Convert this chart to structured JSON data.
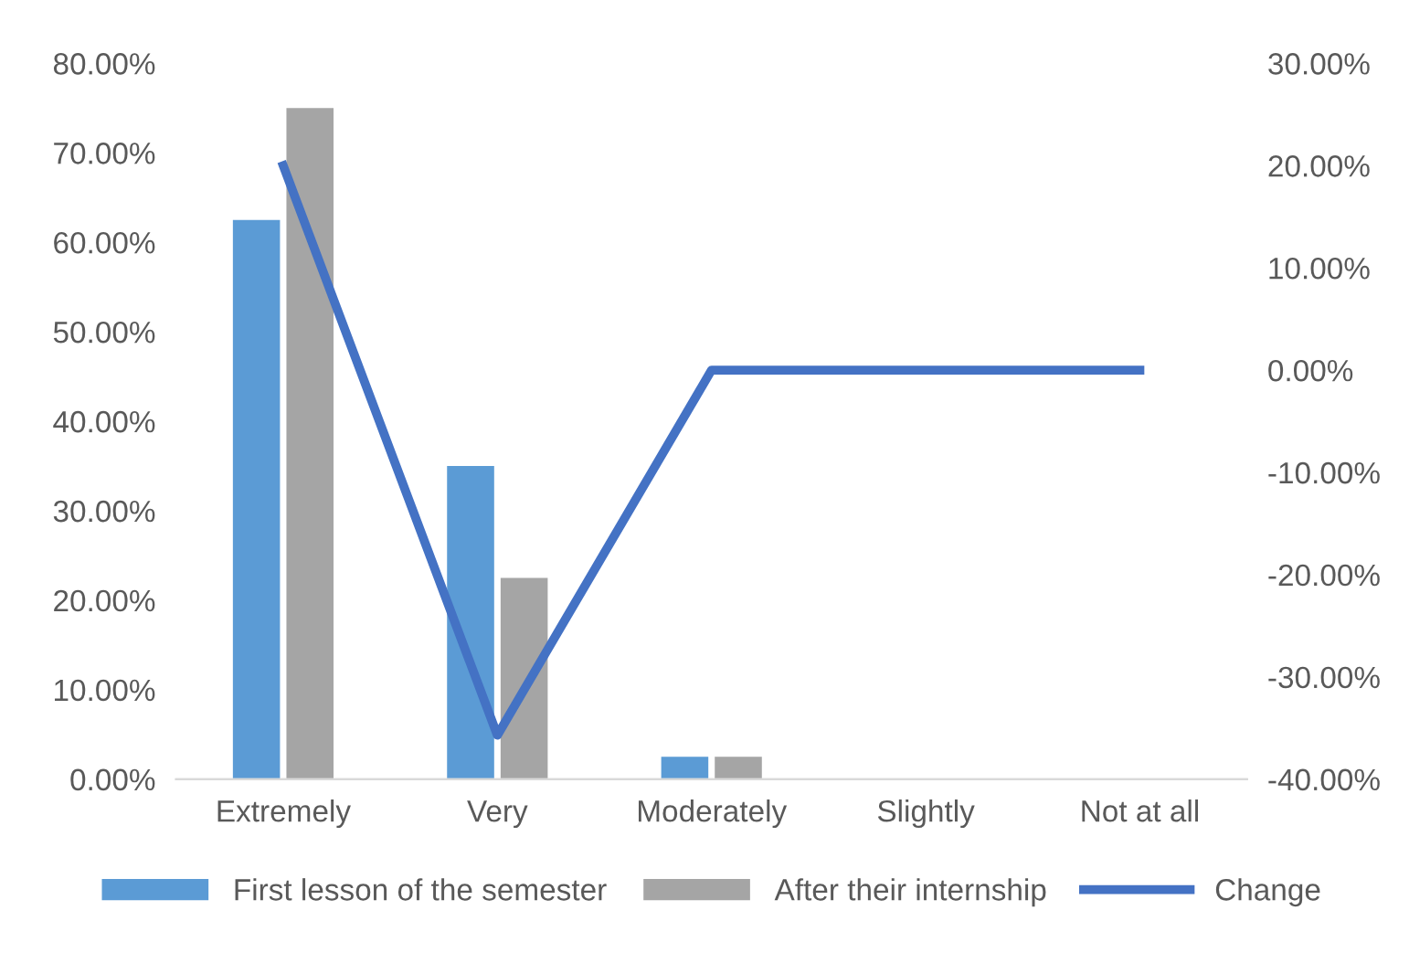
{
  "chart_data": {
    "type": "bar",
    "categories": [
      "Extremely",
      "Very",
      "Moderately",
      "Slightly",
      "Not at all"
    ],
    "series": [
      {
        "name": "First lesson of the semester",
        "color": "#5b9bd5",
        "values": [
          62.5,
          35,
          2.5,
          0,
          0
        ]
      },
      {
        "name": "After their internship",
        "color": "#a5a5a5",
        "values": [
          75,
          22.5,
          2.5,
          0,
          0
        ]
      },
      {
        "name": "Change",
        "color": "#4472c4",
        "type": "line",
        "axis": "y2",
        "values": [
          20,
          -35.7,
          0,
          0,
          0
        ]
      }
    ],
    "ylim": [
      0,
      80
    ],
    "yticks": [
      {
        "value": 0,
        "label": "0.00%"
      },
      {
        "value": 10,
        "label": "10.00%"
      },
      {
        "value": 20,
        "label": "20.00%"
      },
      {
        "value": 30,
        "label": "30.00%"
      },
      {
        "value": 40,
        "label": "40.00%"
      },
      {
        "value": 50,
        "label": "50.00%"
      },
      {
        "value": 60,
        "label": "60.00%"
      },
      {
        "value": 70,
        "label": "70.00%"
      },
      {
        "value": 80,
        "label": "80.00%"
      }
    ],
    "y2lim": [
      -40,
      30
    ],
    "y2ticks": [
      {
        "value": -40,
        "label": "-40.00%"
      },
      {
        "value": -30,
        "label": "-30.00%"
      },
      {
        "value": -20,
        "label": "-20.00%"
      },
      {
        "value": -10,
        "label": "-10.00%"
      },
      {
        "value": 0,
        "label": "0.00%"
      },
      {
        "value": 10,
        "label": "10.00%"
      },
      {
        "value": 20,
        "label": "20.00%"
      },
      {
        "value": 30,
        "label": "30.00%"
      }
    ],
    "legend": "bottom",
    "grid": false,
    "marker": "none",
    "line_style": "solid"
  }
}
